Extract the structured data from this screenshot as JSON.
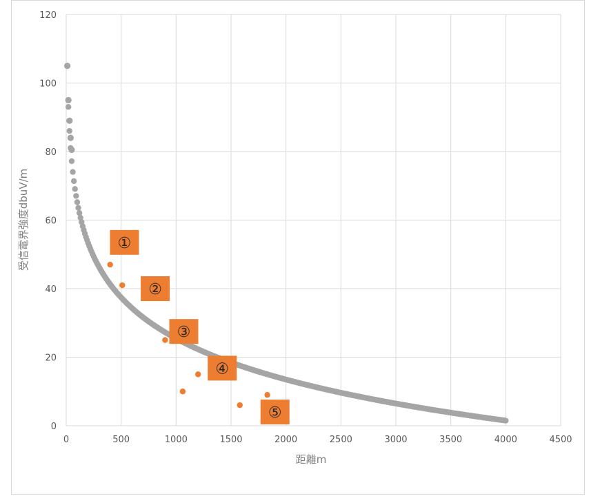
{
  "chart_data": {
    "type": "scatter",
    "title": "",
    "xlabel": "距離m",
    "ylabel": "受信電界強度dbuV/m",
    "xlim": [
      0,
      4500
    ],
    "ylim": [
      0,
      120
    ],
    "x_ticks": [
      "0",
      "500",
      "1000",
      "1500",
      "2000",
      "2500",
      "3000",
      "3500",
      "4000",
      "4500"
    ],
    "y_ticks": [
      "0",
      "20",
      "40",
      "60",
      "80",
      "100",
      "120"
    ],
    "grid": true,
    "legend": "none",
    "series": [
      {
        "color": "#a5a5a5",
        "curve": {
          "x_start": 10,
          "x_end": 4000,
          "x_step": 10,
          "y_at_10": 105,
          "y_at_4000": 1.5
        },
        "highlight_points": [
          {
            "x": 10,
            "y": 105
          },
          {
            "x": 20,
            "y": 95
          },
          {
            "x": 30,
            "y": 89
          },
          {
            "x": 40,
            "y": 84
          },
          {
            "x": 50,
            "y": 80.5
          }
        ]
      },
      {
        "color": "#ed7d31",
        "points": [
          {
            "x": 400,
            "y": 47
          },
          {
            "x": 510,
            "y": 41
          },
          {
            "x": 900,
            "y": 25
          },
          {
            "x": 1060,
            "y": 10
          },
          {
            "x": 1200,
            "y": 15
          },
          {
            "x": 1580,
            "y": 6
          },
          {
            "x": 1830,
            "y": 9
          }
        ]
      }
    ],
    "callouts": [
      {
        "label": "①",
        "anchor_x": 530,
        "anchor_y": 53.5
      },
      {
        "label": "②",
        "anchor_x": 810,
        "anchor_y": 40
      },
      {
        "label": "③",
        "anchor_x": 1070,
        "anchor_y": 27.5
      },
      {
        "label": "④",
        "anchor_x": 1420,
        "anchor_y": 16.8
      },
      {
        "label": "⑤",
        "anchor_x": 1900,
        "anchor_y": 4
      }
    ],
    "callout_fill": "#ed7d31"
  }
}
